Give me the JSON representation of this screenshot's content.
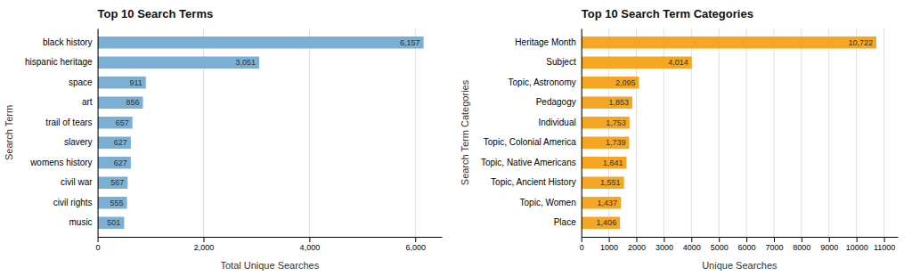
{
  "chart_data": [
    {
      "type": "bar",
      "orientation": "horizontal",
      "title": "Top 10 Search Terms",
      "xlabel": "Total Unique Searches",
      "ylabel": "Search Term",
      "categories": [
        "music",
        "civil rights",
        "civil war",
        "womens history",
        "slavery",
        "trail of tears",
        "art",
        "space",
        "hispanic heritage",
        "black history"
      ],
      "values": [
        501,
        555,
        567,
        627,
        627,
        657,
        856,
        911,
        3051,
        6157
      ],
      "value_labels": [
        "501",
        "555",
        "567",
        "627",
        "627",
        "657",
        "856",
        "911",
        "3,051",
        "6,157"
      ],
      "data_labels": true,
      "color": "#7bafd4",
      "xlim": [
        0,
        6500
      ],
      "xticks": [
        0,
        {
          "value": 2000,
          "label": "2,000"
        },
        {
          "value": 4000,
          "label": "4,000"
        },
        {
          "value": 6000,
          "label": "6,000"
        }
      ],
      "grid": true
    },
    {
      "type": "bar",
      "orientation": "horizontal",
      "title": "Top 10 Search Term Categories",
      "xlabel": "Unique Searches",
      "ylabel": "Search Term Categories",
      "categories": [
        "Place",
        "Topic, Women",
        "Topic, Ancient History",
        "Topic, Native Americans",
        "Topic, Colonial America",
        "Individual",
        "Pedagogy",
        "Topic, Astronomy",
        "Subject",
        "Heritage Month"
      ],
      "values": [
        1406,
        1437,
        1551,
        1641,
        1739,
        1753,
        1853,
        2095,
        4014,
        10722
      ],
      "value_labels": [
        "1,406",
        "1,437",
        "1,551",
        "1,641",
        "1,739",
        "1,753",
        "1,853",
        "2,095",
        "4,014",
        "10,722"
      ],
      "data_labels": true,
      "color": "#f5a623",
      "xlim": [
        0,
        11500
      ],
      "xticks": [
        0,
        1000,
        2000,
        3000,
        4000,
        5000,
        6000,
        7000,
        8000,
        9000,
        10000,
        11000
      ],
      "grid": true
    }
  ]
}
